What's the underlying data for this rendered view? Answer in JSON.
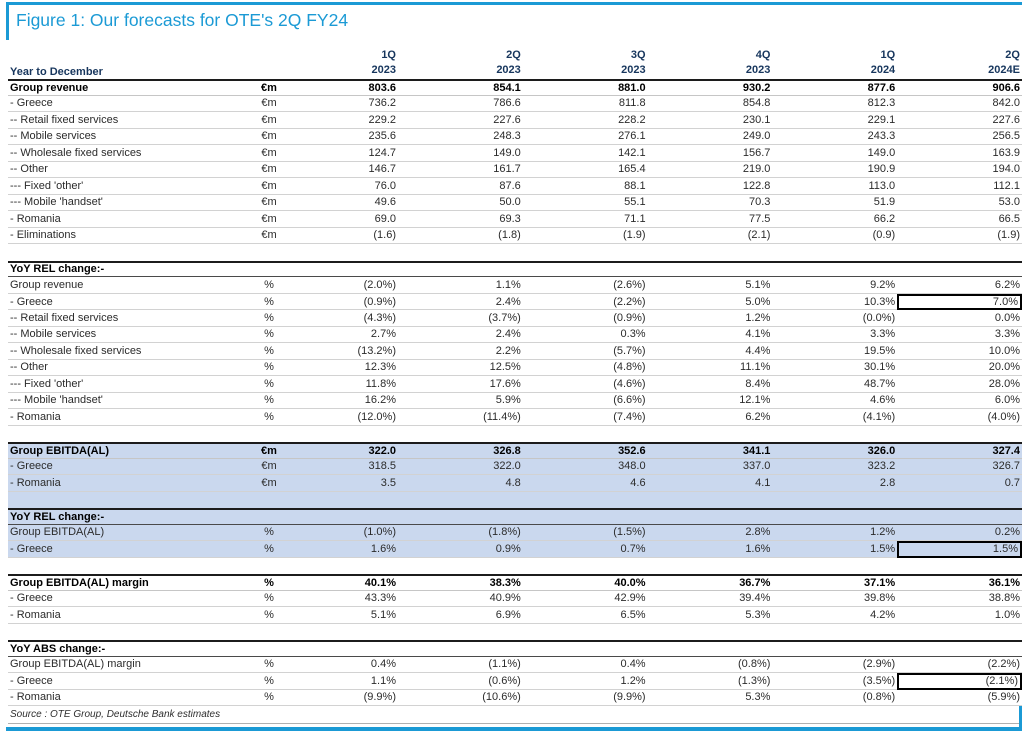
{
  "figure": {
    "title": "Figure 1: Our forecasts for OTE's 2Q FY24",
    "source": "Source : OTE Group, Deutsche Bank estimates",
    "colors": {
      "accent_blue": "#1b9ad5",
      "header_navy": "#17365d",
      "shaded_section_bg": "#cad8ee",
      "highlight_box_border": "#000000"
    }
  },
  "table": {
    "row_label_header": "Year to December",
    "columns": [
      {
        "quarter": "1Q",
        "year": "2023"
      },
      {
        "quarter": "2Q",
        "year": "2023"
      },
      {
        "quarter": "3Q",
        "year": "2023"
      },
      {
        "quarter": "4Q",
        "year": "2023"
      },
      {
        "quarter": "1Q",
        "year": "2024"
      },
      {
        "quarter": "2Q",
        "year": "2024E"
      }
    ],
    "rows": [
      {
        "label": "Group revenue",
        "unit": "€m",
        "style": "total",
        "values": [
          "803.6",
          "854.1",
          "881.0",
          "930.2",
          "877.6",
          "906.6"
        ]
      },
      {
        "label": "- Greece",
        "unit": "€m",
        "style": "normal",
        "values": [
          "736.2",
          "786.6",
          "811.8",
          "854.8",
          "812.3",
          "842.0"
        ]
      },
      {
        "label": "-- Retail fixed services",
        "unit": "€m",
        "style": "normal",
        "values": [
          "229.2",
          "227.6",
          "228.2",
          "230.1",
          "229.1",
          "227.6"
        ]
      },
      {
        "label": "-- Mobile services",
        "unit": "€m",
        "style": "normal",
        "values": [
          "235.6",
          "248.3",
          "276.1",
          "249.0",
          "243.3",
          "256.5"
        ]
      },
      {
        "label": "-- Wholesale fixed services",
        "unit": "€m",
        "style": "normal",
        "values": [
          "124.7",
          "149.0",
          "142.1",
          "156.7",
          "149.0",
          "163.9"
        ]
      },
      {
        "label": "-- Other",
        "unit": "€m",
        "style": "normal",
        "values": [
          "146.7",
          "161.7",
          "165.4",
          "219.0",
          "190.9",
          "194.0"
        ]
      },
      {
        "label": "--- Fixed 'other'",
        "unit": "€m",
        "style": "normal",
        "values": [
          "76.0",
          "87.6",
          "88.1",
          "122.8",
          "113.0",
          "112.1"
        ]
      },
      {
        "label": "--- Mobile 'handset'",
        "unit": "€m",
        "style": "normal",
        "values": [
          "49.6",
          "50.0",
          "55.1",
          "70.3",
          "51.9",
          "53.0"
        ]
      },
      {
        "label": "- Romania",
        "unit": "€m",
        "style": "normal",
        "values": [
          "69.0",
          "69.3",
          "71.1",
          "77.5",
          "66.2",
          "66.5"
        ]
      },
      {
        "label": "- Eliminations",
        "unit": "€m",
        "style": "normal",
        "values": [
          "(1.6)",
          "(1.8)",
          "(1.9)",
          "(2.1)",
          "(0.9)",
          "(1.9)"
        ]
      },
      {
        "style": "blank"
      },
      {
        "label": "YoY REL change:-",
        "style": "section"
      },
      {
        "label": "Group revenue",
        "unit": "%",
        "style": "normal",
        "values": [
          "(2.0%)",
          "1.1%",
          "(2.6%)",
          "5.1%",
          "9.2%",
          "6.2%"
        ]
      },
      {
        "label": "- Greece",
        "unit": "%",
        "style": "normal",
        "boxed": true,
        "values": [
          "(0.9%)",
          "2.4%",
          "(2.2%)",
          "5.0%",
          "10.3%",
          "7.0%"
        ]
      },
      {
        "label": "-- Retail fixed services",
        "unit": "%",
        "style": "normal",
        "values": [
          "(4.3%)",
          "(3.7%)",
          "(0.9%)",
          "1.2%",
          "(0.0%)",
          "0.0%"
        ]
      },
      {
        "label": "-- Mobile services",
        "unit": "%",
        "style": "normal",
        "values": [
          "2.7%",
          "2.4%",
          "0.3%",
          "4.1%",
          "3.3%",
          "3.3%"
        ]
      },
      {
        "label": "-- Wholesale fixed services",
        "unit": "%",
        "style": "normal",
        "values": [
          "(13.2%)",
          "2.2%",
          "(5.7%)",
          "4.4%",
          "19.5%",
          "10.0%"
        ]
      },
      {
        "label": "-- Other",
        "unit": "%",
        "style": "normal",
        "values": [
          "12.3%",
          "12.5%",
          "(4.8%)",
          "11.1%",
          "30.1%",
          "20.0%"
        ]
      },
      {
        "label": "--- Fixed 'other'",
        "unit": "%",
        "style": "normal",
        "values": [
          "11.8%",
          "17.6%",
          "(4.6%)",
          "8.4%",
          "48.7%",
          "28.0%"
        ]
      },
      {
        "label": "--- Mobile 'handset'",
        "unit": "%",
        "style": "normal",
        "values": [
          "16.2%",
          "5.9%",
          "(6.6%)",
          "12.1%",
          "4.6%",
          "6.0%"
        ]
      },
      {
        "label": "- Romania",
        "unit": "%",
        "style": "normal",
        "values": [
          "(12.0%)",
          "(11.4%)",
          "(7.4%)",
          "6.2%",
          "(4.1%)",
          "(4.0%)"
        ]
      },
      {
        "style": "blank"
      },
      {
        "label": "Group EBITDA(AL)",
        "unit": "€m",
        "style": "total",
        "shaded": true,
        "values": [
          "322.0",
          "326.8",
          "352.6",
          "341.1",
          "326.0",
          "327.4"
        ]
      },
      {
        "label": "- Greece",
        "unit": "€m",
        "style": "normal",
        "shaded": true,
        "values": [
          "318.5",
          "322.0",
          "348.0",
          "337.0",
          "323.2",
          "326.7"
        ]
      },
      {
        "label": "- Romania",
        "unit": "€m",
        "style": "normal",
        "shaded": true,
        "values": [
          "3.5",
          "4.8",
          "4.6",
          "4.1",
          "2.8",
          "0.7"
        ]
      },
      {
        "style": "blank",
        "shaded": true
      },
      {
        "label": "YoY REL change:-",
        "style": "section",
        "shaded": true
      },
      {
        "label": "Group EBITDA(AL)",
        "unit": "%",
        "style": "normal",
        "shaded": true,
        "values": [
          "(1.0%)",
          "(1.8%)",
          "(1.5%)",
          "2.8%",
          "1.2%",
          "0.2%"
        ]
      },
      {
        "label": "- Greece",
        "unit": "%",
        "style": "normal",
        "shaded": true,
        "boxed": true,
        "values": [
          "1.6%",
          "0.9%",
          "0.7%",
          "1.6%",
          "1.5%",
          "1.5%"
        ]
      },
      {
        "style": "blank"
      },
      {
        "label": "Group EBITDA(AL) margin",
        "unit": "%",
        "style": "total",
        "values": [
          "40.1%",
          "38.3%",
          "40.0%",
          "36.7%",
          "37.1%",
          "36.1%"
        ]
      },
      {
        "label": "- Greece",
        "unit": "%",
        "style": "normal",
        "values": [
          "43.3%",
          "40.9%",
          "42.9%",
          "39.4%",
          "39.8%",
          "38.8%"
        ]
      },
      {
        "label": "- Romania",
        "unit": "%",
        "style": "normal",
        "values": [
          "5.1%",
          "6.9%",
          "6.5%",
          "5.3%",
          "4.2%",
          "1.0%"
        ]
      },
      {
        "style": "blank"
      },
      {
        "label": "YoY ABS change:-",
        "style": "section"
      },
      {
        "label": "Group EBITDA(AL) margin",
        "unit": "%",
        "style": "normal",
        "values": [
          "0.4%",
          "(1.1%)",
          "0.4%",
          "(0.8%)",
          "(2.9%)",
          "(2.2%)"
        ]
      },
      {
        "label": "- Greece",
        "unit": "%",
        "style": "normal",
        "boxed": true,
        "values": [
          "1.1%",
          "(0.6%)",
          "1.2%",
          "(1.3%)",
          "(3.5%)",
          "(2.1%)"
        ]
      },
      {
        "label": "- Romania",
        "unit": "%",
        "style": "normal",
        "values": [
          "(9.9%)",
          "(10.6%)",
          "(9.9%)",
          "5.3%",
          "(0.8%)",
          "(5.9%)"
        ]
      }
    ]
  }
}
